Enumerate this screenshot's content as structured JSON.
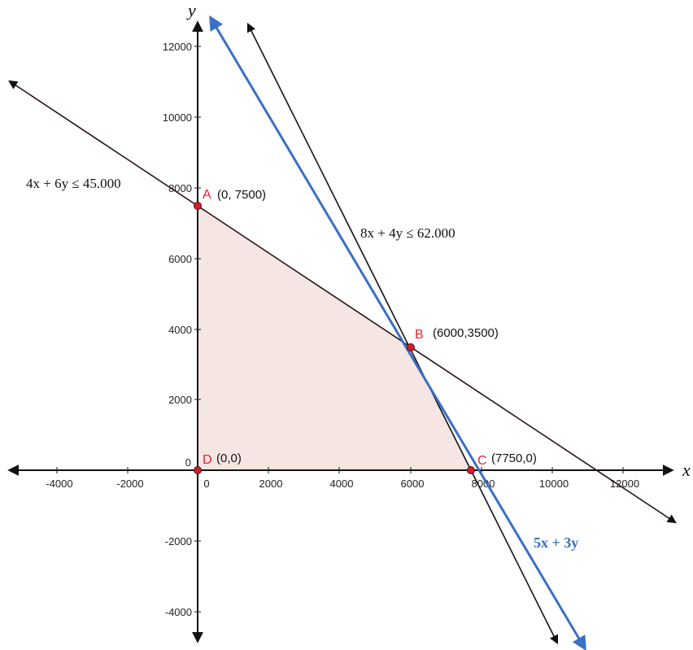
{
  "axes": {
    "x_name": "x",
    "y_name": "y",
    "x_ticks": [
      "-4000",
      "-2000",
      "0",
      "2000",
      "4000",
      "6000",
      "8000",
      "10000",
      "12000"
    ],
    "y_ticks": [
      "12000",
      "10000",
      "8000",
      "6000",
      "4000",
      "2000",
      "0",
      "-2000",
      "-4000"
    ]
  },
  "constraints": {
    "c1": "4x + 6y ≤ 45.000",
    "c2": "8x + 4y ≤ 62.000"
  },
  "objective": "5x + 3y",
  "points": {
    "A": {
      "letter": "A",
      "coord": "(0, 7500)"
    },
    "B": {
      "letter": "B",
      "coord": "(6000,3500)"
    },
    "C": {
      "letter": "C",
      "coord": "(7750,0)"
    },
    "D": {
      "letter": "D",
      "coord": "(0,0)"
    }
  },
  "colors": {
    "feasible_fill": "#f5e6e3",
    "constraint_line": "#2a1418",
    "objective_line": "#3a6fc4",
    "point_fill": "#d01f27",
    "point_label": "#e8202a"
  }
}
